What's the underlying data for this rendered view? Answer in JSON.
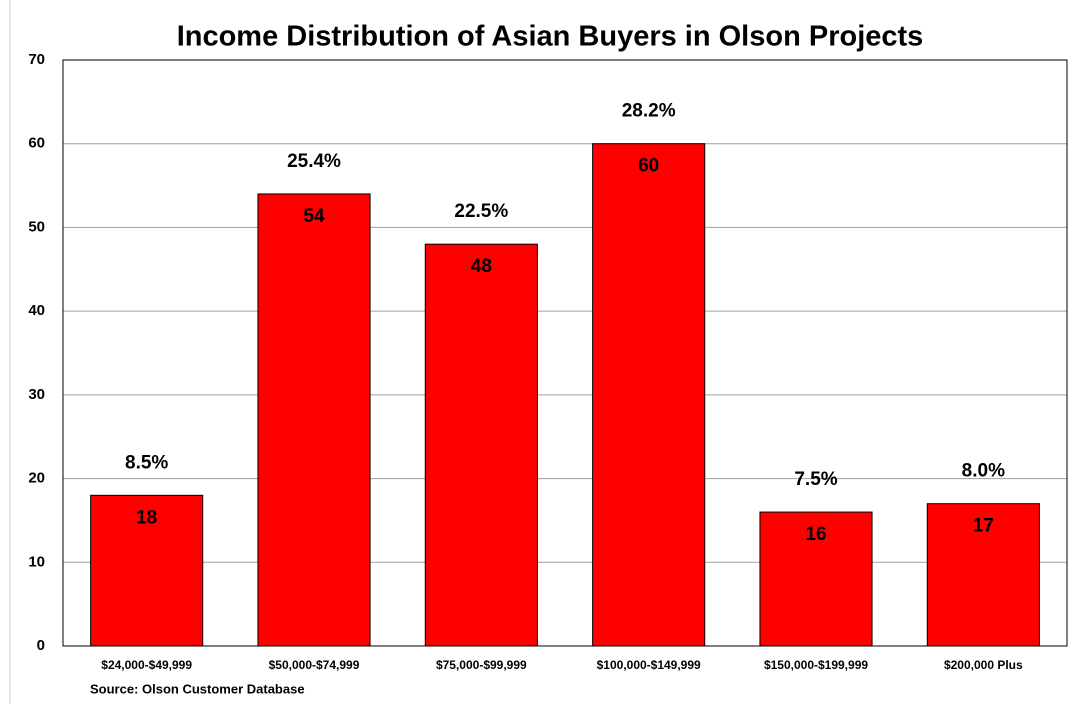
{
  "chart_data": {
    "type": "bar",
    "title": "Income Distribution of Asian Buyers in Olson Projects",
    "source": "Source: Olson Customer Database",
    "categories": [
      "$24,000-$49,999",
      "$50,000-$74,999",
      "$75,000-$99,999",
      "$100,000-$149,999",
      "$150,000-$199,999",
      "$200,000 Plus"
    ],
    "values": [
      18,
      54,
      48,
      60,
      16,
      17
    ],
    "percentage_labels": [
      "8.5%",
      "25.4%",
      "22.5%",
      "28.2%",
      "7.5%",
      "8.0%"
    ],
    "color": "#ff0000",
    "ylim": [
      0,
      70
    ],
    "yticks": [
      0,
      10,
      20,
      30,
      40,
      50,
      60,
      70
    ],
    "grid": true
  }
}
